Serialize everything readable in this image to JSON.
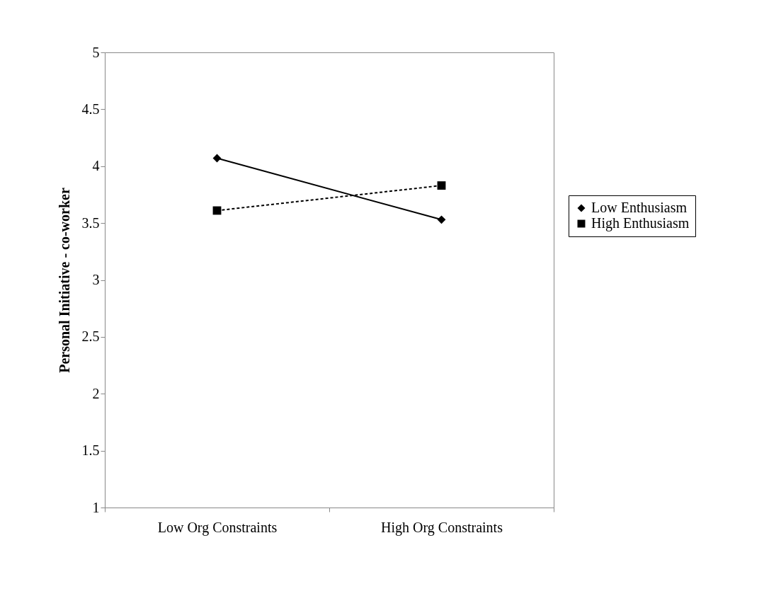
{
  "chart_data": {
    "type": "line",
    "ylabel": "Personal Initiative - co-worker",
    "categories": [
      "Low Org Constraints",
      "High Org Constraints"
    ],
    "series": [
      {
        "name": "Low Enthusiasm",
        "color": "#000000",
        "values": [
          4.07,
          3.53
        ],
        "marker": "diamond",
        "line_style": "solid"
      },
      {
        "name": "High Enthusiasm",
        "color": "#000000",
        "values": [
          3.61,
          3.83
        ],
        "marker": "square",
        "line_style": "dashed"
      }
    ],
    "ylim": [
      1,
      5
    ],
    "yticks": [
      1,
      1.5,
      2,
      2.5,
      3,
      3.5,
      4,
      4.5,
      5
    ],
    "grid": false,
    "legend": "right"
  }
}
